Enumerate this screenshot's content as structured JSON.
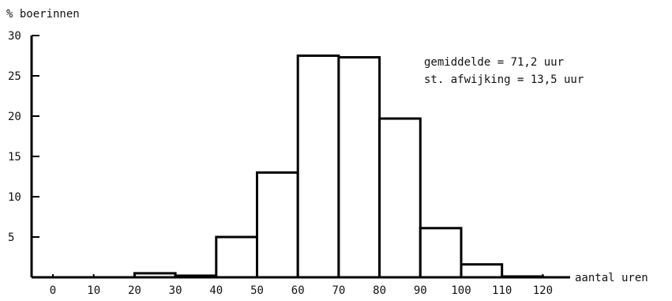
{
  "chart_data": {
    "type": "bar",
    "ylabel": "% boerinnen",
    "xlabel": "aantal uren",
    "x_ticks": [
      "0",
      "10",
      "20",
      "30",
      "40",
      "50",
      "60",
      "70",
      "80",
      "90",
      "100",
      "110",
      "120"
    ],
    "y_ticks": [
      "30",
      "25",
      "20",
      "15",
      "10",
      "5"
    ],
    "xlim": [
      -5,
      125
    ],
    "ylim": [
      0,
      30
    ],
    "bins": [
      {
        "from": 20,
        "to": 30,
        "value": 0.5
      },
      {
        "from": 30,
        "to": 40,
        "value": 0.2
      },
      {
        "from": 40,
        "to": 50,
        "value": 5
      },
      {
        "from": 50,
        "to": 60,
        "value": 13
      },
      {
        "from": 60,
        "to": 70,
        "value": 27.5
      },
      {
        "from": 70,
        "to": 80,
        "value": 27.3
      },
      {
        "from": 80,
        "to": 90,
        "value": 19.7
      },
      {
        "from": 90,
        "to": 100,
        "value": 6.1
      },
      {
        "from": 100,
        "to": 110,
        "value": 1.6
      },
      {
        "from": 110,
        "to": 120,
        "value": 0.1
      }
    ],
    "annotations": [
      "gemiddelde = 71,2 uur",
      "st. afwijking = 13,5 uur"
    ]
  }
}
